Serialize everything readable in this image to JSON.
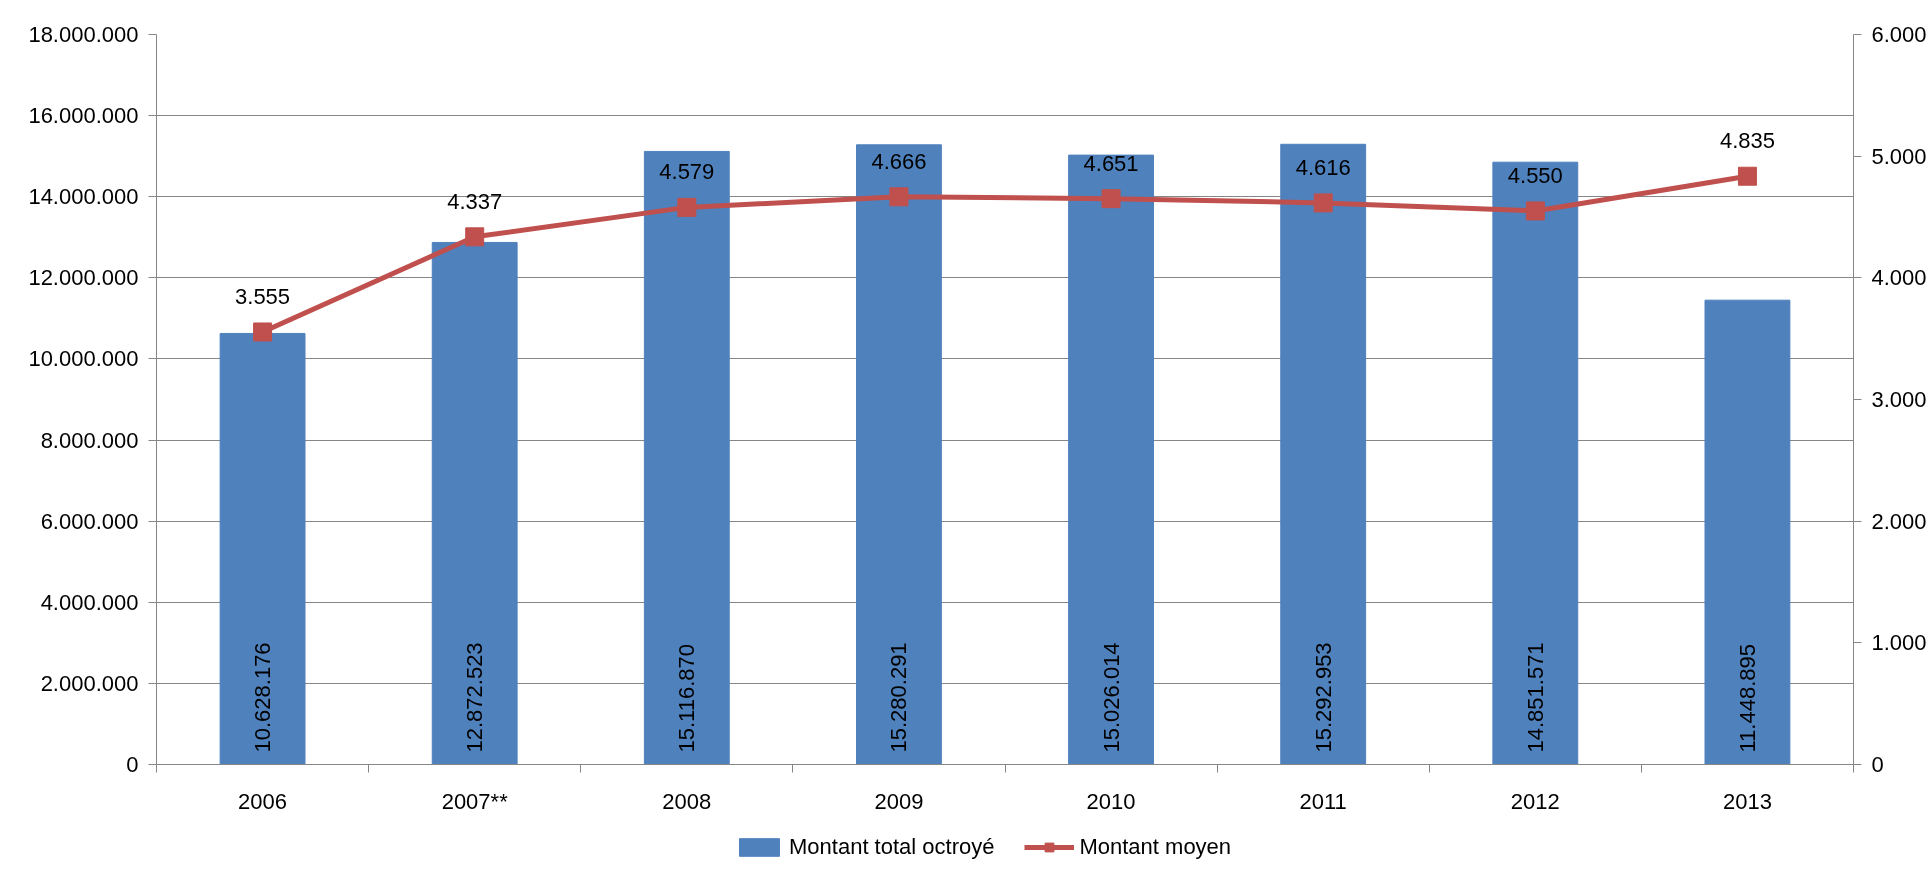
{
  "chart_data": {
    "type": "bar",
    "categories": [
      "2006",
      "2007**",
      "2008",
      "2009",
      "2010",
      "2011",
      "2012",
      "2013"
    ],
    "series": [
      {
        "name": "Montant total octroyé",
        "color": "#4f81bd",
        "values": [
          10628176,
          12872523,
          15116870,
          15280291,
          15026014,
          15292953,
          14851571,
          11448895
        ],
        "value_labels": [
          "10.628.176",
          "12.872.523",
          "15.116.870",
          "15.280.291",
          "15.026.014",
          "15.292.953",
          "14.851.571",
          "11.448.895"
        ]
      },
      {
        "name": "Montant moyen",
        "type": "line",
        "axis": "y2",
        "color": "#c0504d",
        "marker": "square",
        "values": [
          3555,
          4337,
          4579,
          4666,
          4651,
          4616,
          4550,
          4835
        ],
        "value_labels": [
          "3.555",
          "4.337",
          "4.579",
          "4.666",
          "4.651",
          "4.616",
          "4.550",
          "4.835"
        ]
      }
    ],
    "ylim": [
      0,
      18000000
    ],
    "yticks": [
      0,
      {
        "value": 2000000,
        "label": "2.000.000"
      },
      {
        "value": 4000000,
        "label": "4.000.000"
      },
      {
        "value": 6000000,
        "label": "6.000.000"
      },
      {
        "value": 8000000,
        "label": "8.000.000"
      },
      {
        "value": 10000000,
        "label": "10.000.000"
      },
      {
        "value": 12000000,
        "label": "12.000.000"
      },
      {
        "value": 14000000,
        "label": "14.000.000"
      },
      {
        "value": 16000000,
        "label": "16.000.000"
      },
      {
        "value": 18000000,
        "label": "18.000.000"
      }
    ],
    "y2lim": [
      0,
      6000
    ],
    "y2ticks": [
      0,
      {
        "value": 1000,
        "label": "1.000"
      },
      {
        "value": 2000,
        "label": "2.000"
      },
      {
        "value": 3000,
        "label": "3.000"
      },
      {
        "value": 4000,
        "label": "4.000"
      },
      {
        "value": 5000,
        "label": "5.000"
      },
      {
        "value": 6000,
        "label": "6.000"
      }
    ],
    "grid": "y",
    "legend": "bottom"
  }
}
